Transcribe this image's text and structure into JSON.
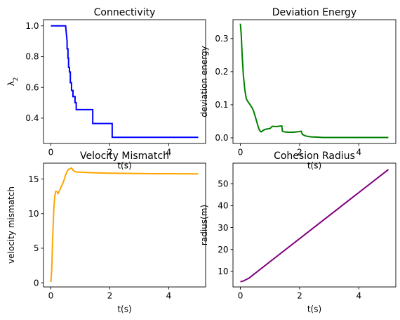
{
  "chart_data": [
    {
      "type": "line",
      "title": "Connectivity",
      "xlabel": "t(s)",
      "ylabel": "λ",
      "ylabel_subscript": "2",
      "xlim": [
        -0.25,
        5.25
      ],
      "ylim": [
        0.235,
        1.04
      ],
      "xticks": [
        0,
        2,
        4
      ],
      "yticks": [
        0.4,
        0.6,
        0.8,
        1.0
      ],
      "ytick_labels": [
        "0.4",
        "0.6",
        "0.8",
        "1.0"
      ],
      "grid": false,
      "series": [
        {
          "color": "#0000ff",
          "x": [
            0,
            0.5,
            0.52,
            0.55,
            0.55,
            0.58,
            0.58,
            0.6,
            0.6,
            0.63,
            0.63,
            0.66,
            0.66,
            0.7,
            0.7,
            0.75,
            0.75,
            0.82,
            0.82,
            0.86,
            0.86,
            1.42,
            1.42,
            2.08,
            2.08,
            5.0
          ],
          "y": [
            1.0,
            1.0,
            0.96,
            0.9,
            0.85,
            0.85,
            0.79,
            0.79,
            0.73,
            0.73,
            0.7,
            0.7,
            0.63,
            0.63,
            0.58,
            0.58,
            0.54,
            0.54,
            0.5,
            0.5,
            0.455,
            0.455,
            0.365,
            0.365,
            0.275,
            0.275
          ]
        }
      ]
    },
    {
      "type": "line",
      "title": "Deviation Energy",
      "xlabel": "t(s)",
      "ylabel": "deviation energy",
      "xlim": [
        -0.25,
        5.25
      ],
      "ylim": [
        -0.017,
        0.357
      ],
      "xticks": [
        0,
        2,
        4
      ],
      "yticks": [
        0.0,
        0.1,
        0.2,
        0.3
      ],
      "ytick_labels": [
        "0.0",
        "0.1",
        "0.2",
        "0.3"
      ],
      "grid": false,
      "series": [
        {
          "color": "#008000",
          "x": [
            0,
            0.03,
            0.06,
            0.1,
            0.15,
            0.2,
            0.25,
            0.3,
            0.35,
            0.4,
            0.45,
            0.5,
            0.55,
            0.6,
            0.65,
            0.7,
            0.75,
            0.8,
            0.9,
            1.0,
            1.05,
            1.1,
            1.2,
            1.3,
            1.4,
            1.42,
            1.5,
            1.6,
            1.7,
            1.8,
            1.9,
            2.0,
            2.05,
            2.1,
            2.2,
            2.3,
            2.4,
            2.6,
            2.8,
            3.0,
            3.5,
            4.0,
            4.5,
            5.0
          ],
          "y": [
            0.345,
            0.31,
            0.25,
            0.19,
            0.145,
            0.118,
            0.11,
            0.104,
            0.097,
            0.09,
            0.08,
            0.065,
            0.05,
            0.034,
            0.022,
            0.018,
            0.021,
            0.024,
            0.027,
            0.028,
            0.033,
            0.035,
            0.034,
            0.035,
            0.036,
            0.02,
            0.018,
            0.017,
            0.017,
            0.017,
            0.018,
            0.019,
            0.02,
            0.01,
            0.006,
            0.004,
            0.003,
            0.002,
            0.001,
            0.001,
            0.001,
            0.001,
            0.001,
            0.001
          ]
        }
      ]
    },
    {
      "type": "line",
      "title": "Velocity Mismatch",
      "xlabel": "t(s)",
      "ylabel": "velocity mismatch",
      "xlim": [
        -0.25,
        5.25
      ],
      "ylim": [
        -0.6,
        17.3
      ],
      "xticks": [
        0,
        2,
        4
      ],
      "yticks": [
        0,
        5,
        10,
        15
      ],
      "ytick_labels": [
        "0",
        "5",
        "10",
        "15"
      ],
      "grid": false,
      "series": [
        {
          "color": "#ffa500",
          "x": [
            0,
            0.03,
            0.05,
            0.08,
            0.1,
            0.13,
            0.16,
            0.2,
            0.24,
            0.28,
            0.32,
            0.36,
            0.4,
            0.45,
            0.5,
            0.55,
            0.6,
            0.65,
            0.7,
            0.75,
            0.8,
            0.9,
            1.0,
            1.2,
            1.5,
            2.0,
            2.5,
            3.0,
            3.5,
            4.0,
            4.5,
            5.0
          ],
          "y": [
            0.1,
            2.0,
            5.0,
            8.5,
            10.8,
            12.4,
            13.2,
            13.2,
            12.9,
            13.2,
            13.6,
            14.0,
            14.3,
            14.9,
            15.6,
            16.1,
            16.4,
            16.5,
            16.6,
            16.3,
            16.1,
            16.0,
            16.0,
            15.95,
            15.9,
            15.85,
            15.82,
            15.8,
            15.78,
            15.77,
            15.76,
            15.75
          ]
        }
      ]
    },
    {
      "type": "line",
      "title": "Cohesion Radius",
      "xlabel": "t(s)",
      "ylabel": "radius(m)",
      "xlim": [
        -0.25,
        5.25
      ],
      "ylim": [
        2.9,
        59.4
      ],
      "xticks": [
        0,
        2,
        4
      ],
      "yticks": [
        10,
        20,
        30,
        40,
        50
      ],
      "ytick_labels": [
        "10",
        "20",
        "30",
        "40",
        "50"
      ],
      "grid": false,
      "series": [
        {
          "color": "#800080",
          "x": [
            0,
            0.1,
            0.2,
            0.3,
            0.4,
            5.0
          ],
          "y": [
            5.3,
            5.6,
            6.3,
            7.0,
            8.1,
            56.5
          ]
        }
      ]
    }
  ]
}
